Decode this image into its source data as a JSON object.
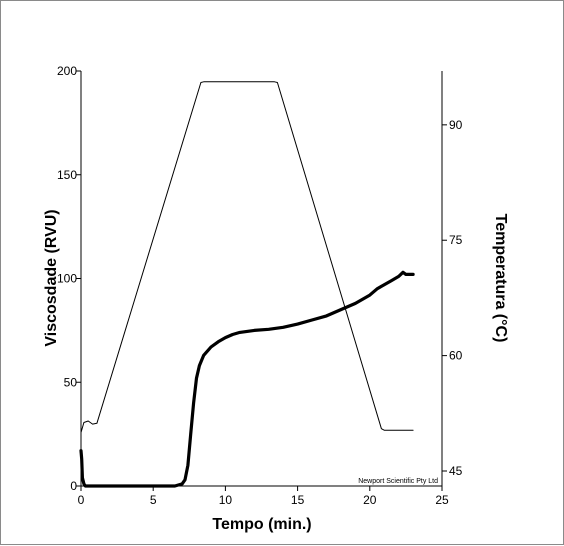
{
  "chart_data": {
    "type": "line",
    "xlabel": "Tempo (min.)",
    "ylabel": "Viscosdade (RVU)",
    "y2label": "Temperatura (°C)",
    "annotation": "Newport Scientific Pty Ltd",
    "xlim": [
      0,
      25
    ],
    "ylim": [
      0,
      200
    ],
    "y2lim": [
      43.05,
      97
    ],
    "x_ticks": [
      "0",
      "5",
      "10",
      "15",
      "20",
      "25"
    ],
    "y_ticks": [
      "0",
      "50",
      "100",
      "150",
      "200"
    ],
    "y2_ticks": [
      "45",
      "60",
      "75",
      "90"
    ],
    "x_tick_values": [
      0,
      5,
      10,
      15,
      20,
      25
    ],
    "y_tick_values": [
      0,
      50,
      100,
      150,
      200
    ],
    "y2_tick_values": [
      45,
      60,
      75,
      90
    ],
    "grid": false,
    "legend": "none",
    "series": [
      {
        "axis": "left",
        "color": "#000000",
        "x": [
          0,
          0.05,
          0.1,
          0.2,
          0.3,
          0.5,
          1,
          2,
          3,
          4,
          5,
          6,
          6.5,
          7,
          7.2,
          7.4,
          7.6,
          7.8,
          8,
          8.2,
          8.5,
          9,
          9.5,
          10,
          10.5,
          11,
          12,
          13,
          14,
          15,
          16,
          17,
          18,
          19,
          20,
          20.5,
          21,
          21.5,
          22,
          22.3,
          22.5,
          23
        ],
        "y": [
          17,
          13,
          4,
          1,
          0,
          0,
          0,
          0,
          0,
          0,
          0,
          0,
          0,
          1,
          3,
          10,
          25,
          40,
          52,
          58,
          63,
          67,
          69.5,
          71.5,
          73,
          74,
          75,
          75.5,
          76.5,
          78,
          80,
          82,
          85,
          88,
          92,
          95,
          97,
          99,
          101,
          103,
          102,
          102
        ]
      },
      {
        "axis": "right",
        "color": "#000000",
        "x": [
          0,
          0.2,
          0.5,
          0.8,
          1.1,
          8.3,
          8.5,
          13.4,
          13.6,
          20.8,
          21,
          23
        ],
        "y": [
          50,
          51.3,
          51.5,
          51.1,
          51.2,
          95.5,
          95.6,
          95.6,
          95.5,
          50.5,
          50.3,
          50.3
        ]
      }
    ]
  }
}
